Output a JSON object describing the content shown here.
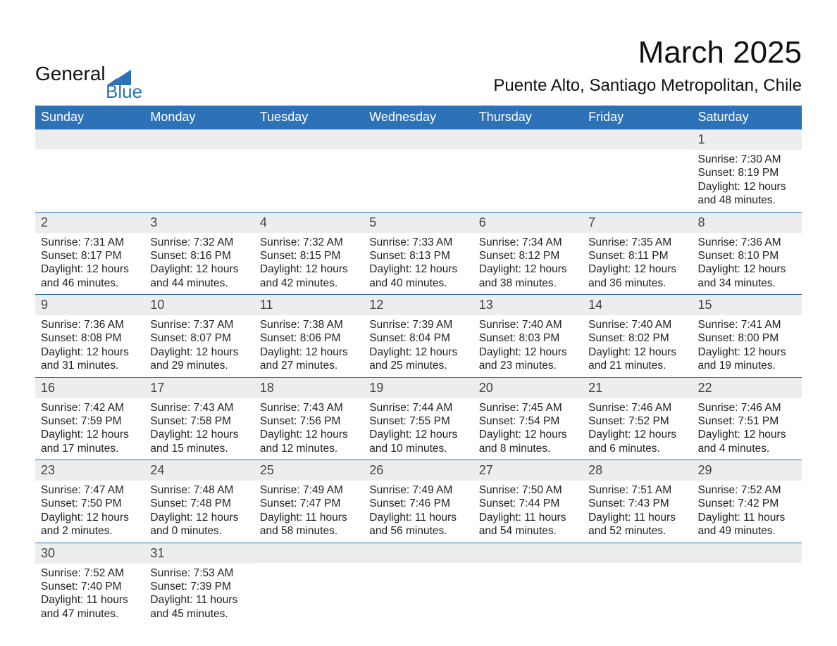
{
  "brand": {
    "word1": "General",
    "word2": "Blue",
    "text_color": "#111111",
    "accent_color": "#2d71b7"
  },
  "title": {
    "main": "March 2025",
    "sub": "Puente Alto, Santiago Metropolitan, Chile",
    "main_fontsize": 44,
    "sub_fontsize": 24
  },
  "calendar": {
    "type": "table",
    "header_bg": "#2d71b7",
    "header_text_color": "#ffffff",
    "daybar_bg": "#eceded",
    "row_divider_color": "#2d71b7",
    "body_text_color": "#222222",
    "columns": [
      "Sunday",
      "Monday",
      "Tuesday",
      "Wednesday",
      "Thursday",
      "Friday",
      "Saturday"
    ],
    "weeks": [
      [
        null,
        null,
        null,
        null,
        null,
        null,
        {
          "n": "1",
          "sunrise": "7:30 AM",
          "sunset": "8:19 PM",
          "dl_h": "12",
          "dl_m": "48"
        }
      ],
      [
        {
          "n": "2",
          "sunrise": "7:31 AM",
          "sunset": "8:17 PM",
          "dl_h": "12",
          "dl_m": "46"
        },
        {
          "n": "3",
          "sunrise": "7:32 AM",
          "sunset": "8:16 PM",
          "dl_h": "12",
          "dl_m": "44"
        },
        {
          "n": "4",
          "sunrise": "7:32 AM",
          "sunset": "8:15 PM",
          "dl_h": "12",
          "dl_m": "42"
        },
        {
          "n": "5",
          "sunrise": "7:33 AM",
          "sunset": "8:13 PM",
          "dl_h": "12",
          "dl_m": "40"
        },
        {
          "n": "6",
          "sunrise": "7:34 AM",
          "sunset": "8:12 PM",
          "dl_h": "12",
          "dl_m": "38"
        },
        {
          "n": "7",
          "sunrise": "7:35 AM",
          "sunset": "8:11 PM",
          "dl_h": "12",
          "dl_m": "36"
        },
        {
          "n": "8",
          "sunrise": "7:36 AM",
          "sunset": "8:10 PM",
          "dl_h": "12",
          "dl_m": "34"
        }
      ],
      [
        {
          "n": "9",
          "sunrise": "7:36 AM",
          "sunset": "8:08 PM",
          "dl_h": "12",
          "dl_m": "31"
        },
        {
          "n": "10",
          "sunrise": "7:37 AM",
          "sunset": "8:07 PM",
          "dl_h": "12",
          "dl_m": "29"
        },
        {
          "n": "11",
          "sunrise": "7:38 AM",
          "sunset": "8:06 PM",
          "dl_h": "12",
          "dl_m": "27"
        },
        {
          "n": "12",
          "sunrise": "7:39 AM",
          "sunset": "8:04 PM",
          "dl_h": "12",
          "dl_m": "25"
        },
        {
          "n": "13",
          "sunrise": "7:40 AM",
          "sunset": "8:03 PM",
          "dl_h": "12",
          "dl_m": "23"
        },
        {
          "n": "14",
          "sunrise": "7:40 AM",
          "sunset": "8:02 PM",
          "dl_h": "12",
          "dl_m": "21"
        },
        {
          "n": "15",
          "sunrise": "7:41 AM",
          "sunset": "8:00 PM",
          "dl_h": "12",
          "dl_m": "19"
        }
      ],
      [
        {
          "n": "16",
          "sunrise": "7:42 AM",
          "sunset": "7:59 PM",
          "dl_h": "12",
          "dl_m": "17"
        },
        {
          "n": "17",
          "sunrise": "7:43 AM",
          "sunset": "7:58 PM",
          "dl_h": "12",
          "dl_m": "15"
        },
        {
          "n": "18",
          "sunrise": "7:43 AM",
          "sunset": "7:56 PM",
          "dl_h": "12",
          "dl_m": "12"
        },
        {
          "n": "19",
          "sunrise": "7:44 AM",
          "sunset": "7:55 PM",
          "dl_h": "12",
          "dl_m": "10"
        },
        {
          "n": "20",
          "sunrise": "7:45 AM",
          "sunset": "7:54 PM",
          "dl_h": "12",
          "dl_m": "8"
        },
        {
          "n": "21",
          "sunrise": "7:46 AM",
          "sunset": "7:52 PM",
          "dl_h": "12",
          "dl_m": "6"
        },
        {
          "n": "22",
          "sunrise": "7:46 AM",
          "sunset": "7:51 PM",
          "dl_h": "12",
          "dl_m": "4"
        }
      ],
      [
        {
          "n": "23",
          "sunrise": "7:47 AM",
          "sunset": "7:50 PM",
          "dl_h": "12",
          "dl_m": "2"
        },
        {
          "n": "24",
          "sunrise": "7:48 AM",
          "sunset": "7:48 PM",
          "dl_h": "12",
          "dl_m": "0"
        },
        {
          "n": "25",
          "sunrise": "7:49 AM",
          "sunset": "7:47 PM",
          "dl_h": "11",
          "dl_m": "58"
        },
        {
          "n": "26",
          "sunrise": "7:49 AM",
          "sunset": "7:46 PM",
          "dl_h": "11",
          "dl_m": "56"
        },
        {
          "n": "27",
          "sunrise": "7:50 AM",
          "sunset": "7:44 PM",
          "dl_h": "11",
          "dl_m": "54"
        },
        {
          "n": "28",
          "sunrise": "7:51 AM",
          "sunset": "7:43 PM",
          "dl_h": "11",
          "dl_m": "52"
        },
        {
          "n": "29",
          "sunrise": "7:52 AM",
          "sunset": "7:42 PM",
          "dl_h": "11",
          "dl_m": "49"
        }
      ],
      [
        {
          "n": "30",
          "sunrise": "7:52 AM",
          "sunset": "7:40 PM",
          "dl_h": "11",
          "dl_m": "47"
        },
        {
          "n": "31",
          "sunrise": "7:53 AM",
          "sunset": "7:39 PM",
          "dl_h": "11",
          "dl_m": "45"
        },
        null,
        null,
        null,
        null,
        null
      ]
    ],
    "labels": {
      "sunrise": "Sunrise: ",
      "sunset": "Sunset: ",
      "daylight_prefix": "Daylight: ",
      "daylight_mid": " hours and ",
      "daylight_suffix": " minutes."
    }
  }
}
